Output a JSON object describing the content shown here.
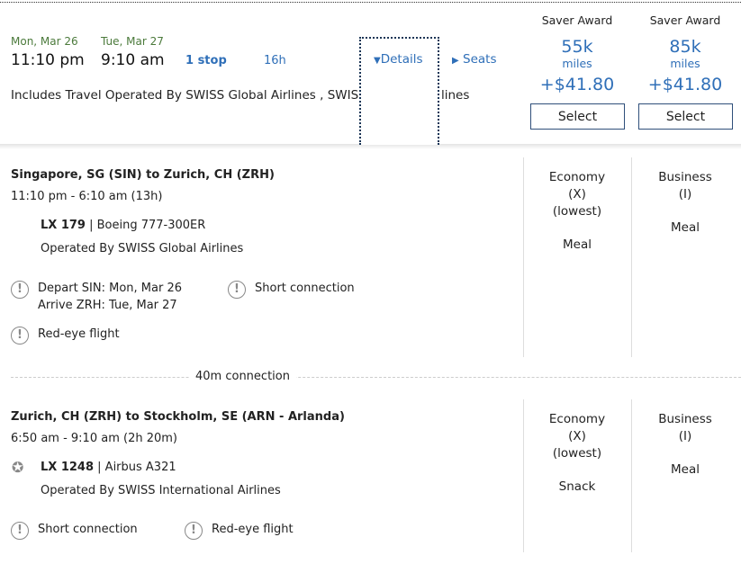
{
  "summary": {
    "depart_date": "Mon, Mar 26",
    "arrive_date": "Tue, Mar 27",
    "depart_time": "11:10 pm",
    "arrive_time": "9:10 am",
    "stops": "1 stop",
    "duration": "16h",
    "details_label": "Details",
    "seats_label": "Seats",
    "operated": "Includes Travel Operated By SWISS Global Airlines , SWISS Int",
    "operated_tail": "lines"
  },
  "fares": [
    {
      "label": "Saver Award",
      "miles": "55k",
      "miles_unit": "miles",
      "price": "+$41.80",
      "select": "Select"
    },
    {
      "label": "Saver Award",
      "miles": "85k",
      "miles_unit": "miles",
      "price": "+$41.80",
      "select": "Select"
    }
  ],
  "segments": [
    {
      "route": "Singapore, SG (SIN) to Zurich, CH (ZRH)",
      "times": "11:10 pm - 6:10 am (13h)",
      "flight": "LX 179",
      "aircraft": "Boeing 777-300ER",
      "operated": "Operated By SWISS Global Airlines",
      "notices": [
        "Depart SIN: Mon, Mar 26",
        "Arrive ZRH: Tue, Mar 27",
        "Short connection",
        "Red-eye flight"
      ],
      "cabins": [
        {
          "name": "Economy",
          "code": "(X)",
          "note": "(lowest)",
          "meal": "Meal"
        },
        {
          "name": "Business",
          "code": "(I)",
          "meal": "Meal"
        }
      ]
    },
    {
      "route": "Zurich, CH (ZRH) to Stockholm, SE (ARN - Arlanda)",
      "times": "6:50 am - 9:10 am (2h 20m)",
      "flight": "LX 1248",
      "aircraft": "Airbus A321",
      "operated": "Operated By SWISS International Airlines",
      "notices": [
        "Short connection",
        "Red-eye flight"
      ],
      "cabins": [
        {
          "name": "Economy",
          "code": "(X)",
          "note": "(lowest)",
          "meal": "Snack"
        },
        {
          "name": "Business",
          "code": "(I)",
          "meal": "Meal"
        }
      ]
    }
  ],
  "connection": "40m connection"
}
